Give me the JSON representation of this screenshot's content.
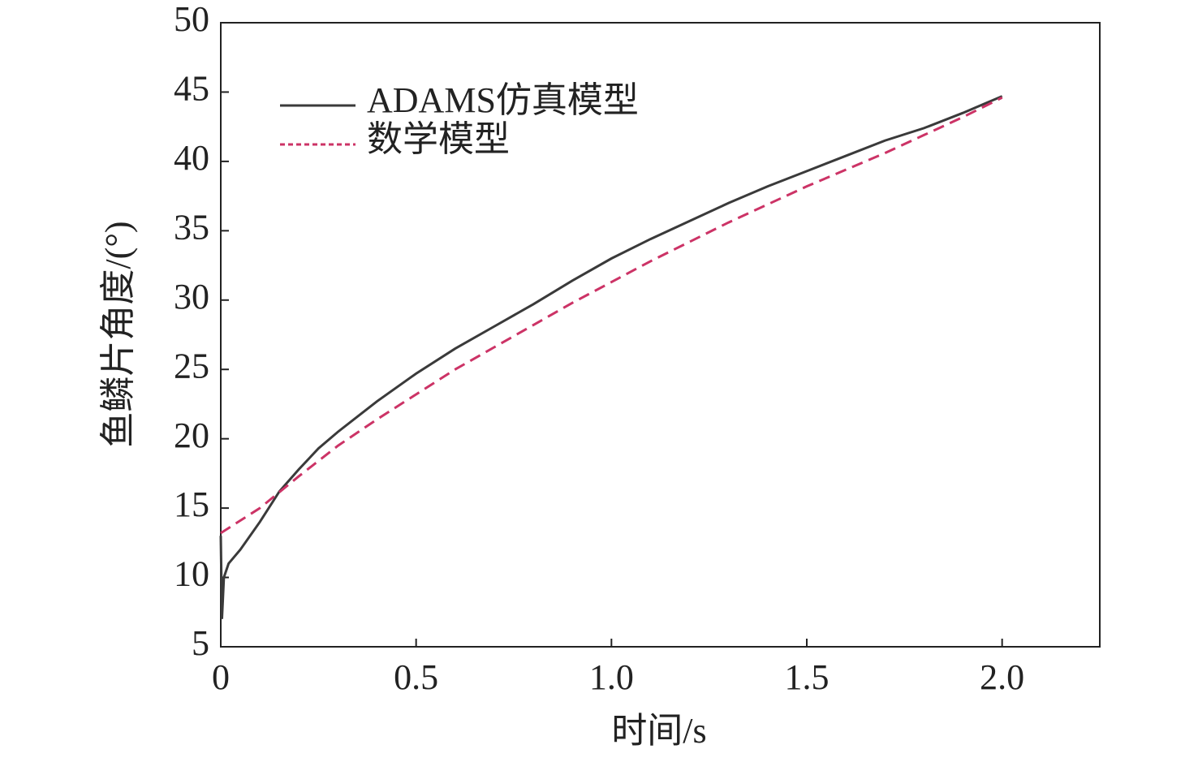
{
  "chart_data": {
    "type": "line",
    "xlabel": "时间/s",
    "ylabel": "鱼鳞片角度/(°)",
    "xlim": [
      0,
      2.25
    ],
    "ylim": [
      5,
      50
    ],
    "xticks": [
      0,
      0.5,
      {
        "value": 1,
        "label": "1.0"
      },
      1.5,
      {
        "value": 2,
        "label": "2.0"
      }
    ],
    "yticks": [
      5,
      10,
      15,
      20,
      25,
      30,
      35,
      40,
      45,
      50
    ],
    "legend": "upper left",
    "series": [
      {
        "name": "ADAMS仿真模型",
        "color": "#3a3a3a",
        "dash": false,
        "x": [
          0,
          0.003,
          0.008,
          0.02,
          0.05,
          0.1,
          0.15,
          0.2,
          0.25,
          0.3,
          0.4,
          0.5,
          0.6,
          0.7,
          0.8,
          0.9,
          1.0,
          1.1,
          1.2,
          1.3,
          1.4,
          1.5,
          1.6,
          1.7,
          1.8,
          1.9,
          2.0
        ],
        "values": [
          13,
          7,
          10,
          11,
          12,
          14,
          16.2,
          17.8,
          19.3,
          20.5,
          22.7,
          24.7,
          26.5,
          28.1,
          29.7,
          31.4,
          33.0,
          34.4,
          35.7,
          37.0,
          38.2,
          39.3,
          40.4,
          41.5,
          42.4,
          43.5,
          44.7
        ]
      },
      {
        "name": "数学模型",
        "color": "#cc3366",
        "dash": true,
        "x": [
          0,
          0.1,
          0.2,
          0.3,
          0.4,
          0.5,
          0.6,
          0.7,
          0.8,
          0.9,
          1.0,
          1.1,
          1.2,
          1.3,
          1.4,
          1.5,
          1.6,
          1.7,
          1.8,
          1.9,
          2.0
        ],
        "values": [
          13.2,
          15,
          17.3,
          19.5,
          21.4,
          23.2,
          25,
          26.6,
          28.2,
          29.8,
          31.3,
          32.8,
          34.2,
          35.6,
          36.9,
          38.2,
          39.4,
          40.6,
          41.9,
          43.2,
          44.6
        ]
      }
    ]
  }
}
